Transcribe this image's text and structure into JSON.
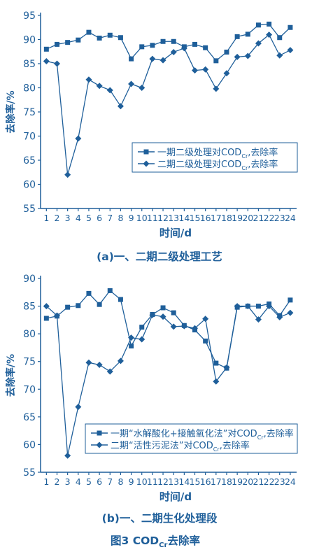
{
  "figure_title_prefix": "图3",
  "figure_title_cod": "COD",
  "figure_title_sub": "Cr",
  "figure_title_suffix": "去除率",
  "colors": {
    "primary": "#1f5f9a"
  },
  "chart_data": [
    {
      "type": "line",
      "caption": "(a)一、二期二级处理工艺",
      "xlabel": "时间/d",
      "ylabel": "去除率/%",
      "ylim": [
        55,
        95
      ],
      "yticks": [
        55,
        60,
        65,
        70,
        75,
        80,
        85,
        90,
        95
      ],
      "x": [
        1,
        2,
        3,
        4,
        5,
        6,
        7,
        8,
        9,
        10,
        11,
        12,
        13,
        14,
        15,
        16,
        17,
        18,
        19,
        20,
        21,
        22,
        23,
        24
      ],
      "legend_position": "center-right",
      "grid": false,
      "series": [
        {
          "name": "一期二级处理对COD去除率",
          "legend_parts": [
            "一期二级处理对COD",
            "Cr",
            ",去除率"
          ],
          "marker": "square",
          "values": [
            88.0,
            89.0,
            89.4,
            89.9,
            91.5,
            90.3,
            90.9,
            90.4,
            86.0,
            88.5,
            88.8,
            89.6,
            89.6,
            88.5,
            89.0,
            88.3,
            85.6,
            87.4,
            90.6,
            91.1,
            93.0,
            93.2,
            90.4,
            92.5
          ]
        },
        {
          "name": "二期二级处理对COD去除率",
          "legend_parts": [
            "二期二级处理对COD",
            "Cr",
            ",去除率"
          ],
          "marker": "diamond",
          "values": [
            85.5,
            85.0,
            62.0,
            69.5,
            81.7,
            80.4,
            79.5,
            76.2,
            80.8,
            80.0,
            86.0,
            85.7,
            87.4,
            88.2,
            83.6,
            83.8,
            79.8,
            83.0,
            86.4,
            86.6,
            89.2,
            91.0,
            86.7,
            87.8
          ]
        }
      ]
    },
    {
      "type": "line",
      "caption": "(b)一、二期生化处理段",
      "xlabel": "时间/d",
      "ylabel": "去除率/%",
      "ylim": [
        55,
        90
      ],
      "yticks": [
        55,
        60,
        65,
        70,
        75,
        80,
        85,
        90
      ],
      "x": [
        1,
        2,
        3,
        4,
        5,
        6,
        7,
        8,
        9,
        10,
        11,
        12,
        13,
        14,
        15,
        16,
        17,
        18,
        19,
        20,
        21,
        22,
        23,
        24
      ],
      "legend_position": "bottom-right",
      "grid": false,
      "series": [
        {
          "name": "一期“水解酸化+接触氧化法”对COD去除率",
          "legend_parts": [
            "一期“水解酸化+接触氧化法”对COD",
            "Cr",
            ",去除率"
          ],
          "marker": "square",
          "values": [
            82.8,
            83.2,
            84.8,
            85.1,
            87.3,
            85.3,
            87.8,
            86.2,
            77.8,
            81.2,
            83.5,
            84.7,
            83.8,
            81.5,
            80.7,
            78.7,
            74.7,
            73.8,
            84.8,
            85.0,
            85.0,
            85.4,
            83.3,
            86.1
          ]
        },
        {
          "name": "二期“活性污泥法”对COD去除率",
          "legend_parts": [
            "二期“活性污泥法”对COD",
            "Cr",
            ",去除率"
          ],
          "marker": "diamond",
          "values": [
            85.0,
            83.3,
            58.0,
            66.8,
            74.8,
            74.4,
            73.2,
            75.1,
            79.3,
            79.0,
            83.4,
            83.1,
            81.3,
            81.4,
            81.0,
            82.7,
            71.4,
            73.9,
            85.0,
            85.0,
            82.6,
            85.0,
            83.0,
            83.8
          ]
        }
      ]
    }
  ]
}
